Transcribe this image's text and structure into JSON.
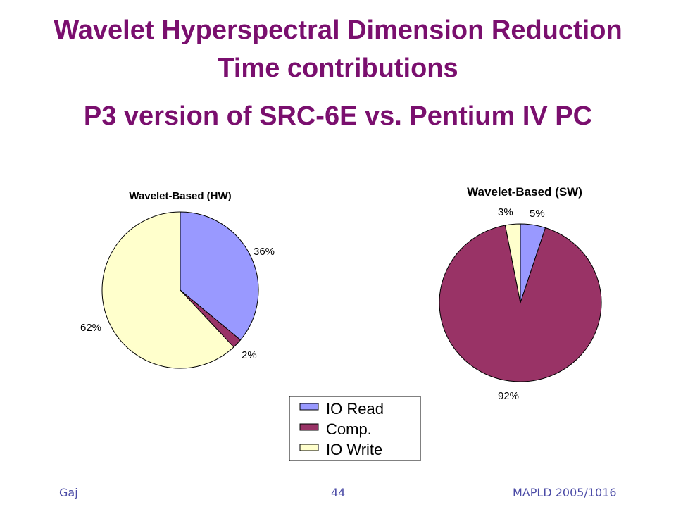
{
  "slide": {
    "title_line1": "Wavelet Hyperspectral Dimension Reduction",
    "title_line2": "Time contributions",
    "subtitle": "P3 version of SRC-6E vs. Pentium IV PC"
  },
  "footer": {
    "author": "Gaj",
    "page": "44",
    "venue": "MAPLD 2005/1016"
  },
  "colors": {
    "title": "#7a0f6e",
    "io_read": "#9999ff",
    "comp": "#993366",
    "io_write": "#ffffcc"
  },
  "legend": [
    "IO Read",
    "Comp.",
    "IO Write"
  ],
  "chart_data": [
    {
      "type": "pie",
      "title": "Wavelet-Based (HW)",
      "labels": [
        "IO Read",
        "Comp.",
        "IO Write"
      ],
      "values": [
        36,
        2,
        62
      ],
      "value_labels": [
        "36%",
        "2%",
        "62%"
      ]
    },
    {
      "type": "pie",
      "title": "Wavelet-Based (SW)",
      "labels": [
        "IO Read",
        "Comp.",
        "IO Write"
      ],
      "values": [
        5,
        92,
        3
      ],
      "value_labels": [
        "5%",
        "92%",
        "3%"
      ]
    }
  ]
}
